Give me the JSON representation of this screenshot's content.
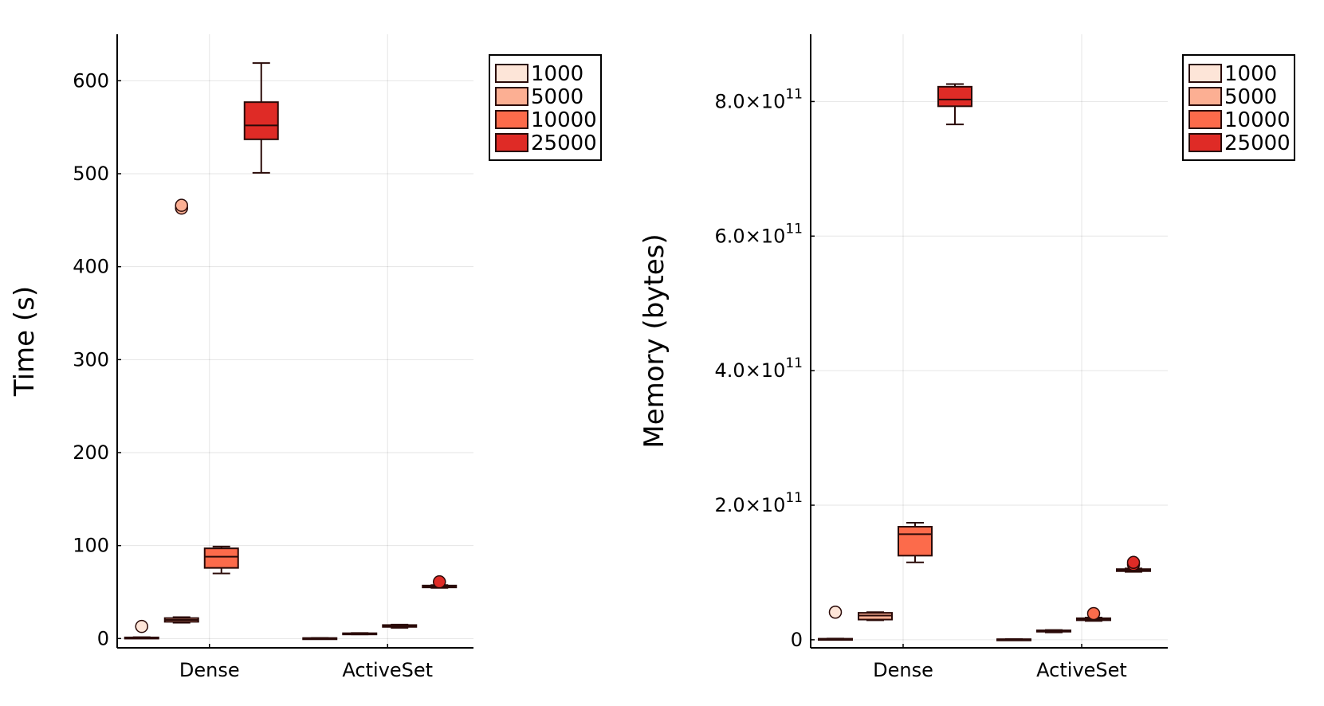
{
  "chart_data": [
    {
      "type": "boxplot",
      "title": "",
      "xlabel": "",
      "ylabel": "Time (s)",
      "categories": [
        "Dense",
        "ActiveSet"
      ],
      "ylim": [
        -10,
        650
      ],
      "yticks": [
        0,
        100,
        200,
        300,
        400,
        500,
        600
      ],
      "ytick_labels": [
        "0",
        "100",
        "200",
        "300",
        "400",
        "500",
        "600"
      ],
      "grid": true,
      "legend": "top-right outside",
      "series": [
        {
          "name": "1000",
          "color": "#fde5d8",
          "boxes": [
            {
              "min": 0.5,
              "q1": 0.8,
              "median": 1.0,
              "q3": 1.2,
              "max": 1.5,
              "outliers": [
                13
              ]
            },
            {
              "min": 0.2,
              "q1": 0.3,
              "median": 0.4,
              "q3": 0.5,
              "max": 0.6,
              "outliers": []
            }
          ]
        },
        {
          "name": "5000",
          "color": "#fcaf93",
          "boxes": [
            {
              "min": 17,
              "q1": 18,
              "median": 20,
              "q3": 22,
              "max": 23,
              "outliers": [
                463,
                466
              ]
            },
            {
              "min": 4.5,
              "q1": 5,
              "median": 5.3,
              "q3": 5.7,
              "max": 6,
              "outliers": []
            }
          ]
        },
        {
          "name": "10000",
          "color": "#fc6b4b",
          "boxes": [
            {
              "min": 70,
              "q1": 76,
              "median": 88,
              "q3": 97,
              "max": 99,
              "outliers": []
            },
            {
              "min": 11.5,
              "q1": 12.5,
              "median": 13.5,
              "q3": 14.5,
              "max": 15,
              "outliers": []
            }
          ]
        },
        {
          "name": "25000",
          "color": "#df2b26",
          "boxes": [
            {
              "min": 501,
              "q1": 537,
              "median": 552,
              "q3": 577,
              "max": 619,
              "outliers": []
            },
            {
              "min": 54.5,
              "q1": 55,
              "median": 56,
              "q3": 57,
              "max": 57.5,
              "outliers": [
                61
              ]
            }
          ]
        }
      ]
    },
    {
      "type": "boxplot",
      "title": "",
      "xlabel": "",
      "ylabel": "Memory (bytes)",
      "categories": [
        "Dense",
        "ActiveSet"
      ],
      "ylim": [
        -12000000000.0,
        900000000000.0
      ],
      "yticks": [
        0,
        200000000000.0,
        400000000000.0,
        600000000000.0,
        800000000000.0
      ],
      "ytick_labels": [
        {
          "mantissa": "0",
          "exponent": ""
        },
        {
          "mantissa": "2.0×10",
          "exponent": "11"
        },
        {
          "mantissa": "4.0×10",
          "exponent": "11"
        },
        {
          "mantissa": "6.0×10",
          "exponent": "11"
        },
        {
          "mantissa": "8.0×10",
          "exponent": "11"
        }
      ],
      "grid": true,
      "legend": "top-right outside",
      "series": [
        {
          "name": "1000",
          "color": "#fde5d8",
          "boxes": [
            {
              "min": 800000000.0,
              "q1": 1000000000.0,
              "median": 1200000000.0,
              "q3": 1500000000.0,
              "max": 1800000000.0,
              "outliers": [
                41000000000.0
              ]
            },
            {
              "min": 300000000.0,
              "q1": 500000000.0,
              "median": 600000000.0,
              "q3": 800000000.0,
              "max": 1000000000.0,
              "outliers": []
            }
          ]
        },
        {
          "name": "5000",
          "color": "#fcaf93",
          "boxes": [
            {
              "min": 29000000000.0,
              "q1": 30000000000.0,
              "median": 36000000000.0,
              "q3": 40000000000.0,
              "max": 41000000000.0,
              "outliers": []
            },
            {
              "min": 11000000000.0,
              "q1": 12000000000.0,
              "median": 13000000000.0,
              "q3": 14000000000.0,
              "max": 14500000000.0,
              "outliers": []
            }
          ]
        },
        {
          "name": "10000",
          "color": "#fc6b4b",
          "boxes": [
            {
              "min": 115000000000.0,
              "q1": 125000000000.0,
              "median": 157000000000.0,
              "q3": 168000000000.0,
              "max": 174000000000.0,
              "outliers": []
            },
            {
              "min": 28000000000.0,
              "q1": 29000000000.0,
              "median": 30000000000.0,
              "q3": 32000000000.0,
              "max": 33000000000.0,
              "outliers": [
                39000000000.0
              ]
            }
          ]
        },
        {
          "name": "25000",
          "color": "#df2b26",
          "boxes": [
            {
              "min": 766000000000.0,
              "q1": 793000000000.0,
              "median": 803000000000.0,
              "q3": 822000000000.0,
              "max": 826000000000.0,
              "outliers": []
            },
            {
              "min": 101000000000.0,
              "q1": 102000000000.0,
              "median": 103500000000.0,
              "q3": 105000000000.0,
              "max": 106000000000.0,
              "outliers": [
                112000000000.0,
                115000000000.0
              ]
            }
          ]
        }
      ]
    }
  ]
}
